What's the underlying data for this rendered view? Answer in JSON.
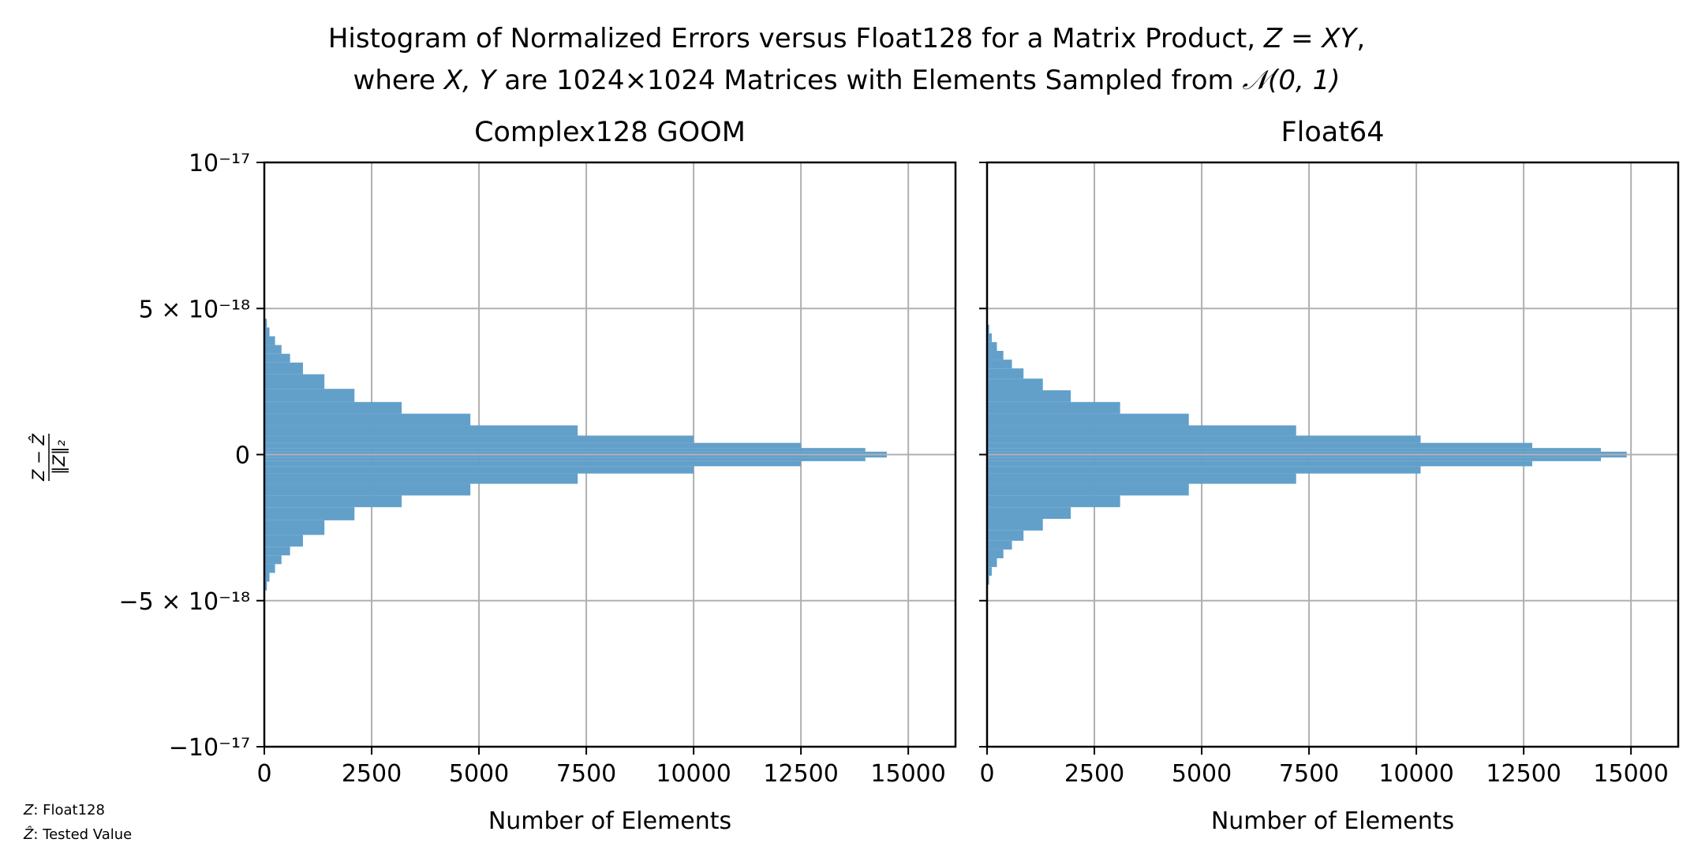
{
  "figure": {
    "title_line1_prefix": "Histogram of Normalized Errors versus Float128 for a Matrix Product, ",
    "title_line1_math": "Z = XY",
    "title_line1_suffix": ",",
    "title_line2_prefix": "where ",
    "title_line2_math": "X, Y",
    "title_line2_middle": " are 1024×1024 Matrices with Elements Sampled from ",
    "title_line2_dist": "𝒩(0, 1)",
    "legend_z_symbol": "Z",
    "legend_z_text": ": Float128",
    "legend_zhat_symbol": "Ẑ",
    "legend_zhat_text": ": Tested Value",
    "ylabel_numerator": "Z − Ẑ",
    "ylabel_denominator": "‖Z‖₂"
  },
  "colors": {
    "bar": "#62a0ca",
    "grid": "#b0b0b0",
    "axis": "#000000"
  },
  "chart_data": [
    {
      "type": "bar",
      "orientation": "horizontal-histogram",
      "title": "Complex128 GOOM",
      "xlabel": "Number of Elements",
      "ylabel": "(Z − Ẑ) / ‖Z‖₂",
      "xlim": [
        0,
        16100
      ],
      "ylim": [
        -1e-17,
        1e-17
      ],
      "xticks": [
        0,
        2500,
        5000,
        7500,
        10000,
        12500,
        15000
      ],
      "xtick_labels": [
        "0",
        "2500",
        "5000",
        "7500",
        "10000",
        "12500",
        "15000"
      ],
      "yticks": [
        1e-17,
        5e-18,
        0,
        -5e-18,
        -1e-17
      ],
      "ytick_labels": [
        "10⁻¹⁷",
        "5 × 10⁻¹⁸",
        "0",
        "−5 × 10⁻¹⁸",
        "−10⁻¹⁷"
      ],
      "grid": true,
      "bins_y_e18": [
        -4.5,
        -4.2,
        -3.9,
        -3.6,
        -3.3,
        -3.0,
        -2.5,
        -2.0,
        -1.6,
        -1.2,
        -0.8,
        -0.5,
        -0.3,
        -0.15,
        -0.05,
        0.0,
        0.05,
        0.15,
        0.3,
        0.5,
        0.8,
        1.2,
        1.6,
        2.0,
        2.5,
        3.0,
        3.3,
        3.6,
        3.9,
        4.2,
        4.5
      ],
      "counts": [
        60,
        120,
        250,
        400,
        600,
        900,
        1400,
        2100,
        3200,
        4800,
        7300,
        10000,
        12500,
        14000,
        14500,
        14600,
        14500,
        14000,
        12500,
        10000,
        7300,
        4800,
        3200,
        2100,
        1400,
        900,
        600,
        400,
        250,
        120,
        60
      ]
    },
    {
      "type": "bar",
      "orientation": "horizontal-histogram",
      "title": "Float64",
      "xlabel": "Number of Elements",
      "ylabel": "",
      "xlim": [
        0,
        16100
      ],
      "ylim": [
        -1e-17,
        1e-17
      ],
      "xticks": [
        0,
        2500,
        5000,
        7500,
        10000,
        12500,
        15000
      ],
      "xtick_labels": [
        "0",
        "2500",
        "5000",
        "7500",
        "10000",
        "12500",
        "15000"
      ],
      "yticks": [
        1e-17,
        5e-18,
        0,
        -5e-18,
        -1e-17
      ],
      "ytick_labels": [
        "",
        "",
        "",
        "",
        ""
      ],
      "grid": true,
      "bins_y_e18": [
        -4.3,
        -4.0,
        -3.7,
        -3.4,
        -3.1,
        -2.8,
        -2.4,
        -2.0,
        -1.6,
        -1.2,
        -0.8,
        -0.5,
        -0.3,
        -0.15,
        -0.05,
        0.0,
        0.05,
        0.15,
        0.3,
        0.5,
        0.8,
        1.2,
        1.6,
        2.0,
        2.4,
        2.8,
        3.1,
        3.4,
        3.7,
        4.0,
        4.3
      ],
      "counts": [
        50,
        110,
        230,
        380,
        580,
        850,
        1300,
        1950,
        3100,
        4700,
        7200,
        10100,
        12700,
        14300,
        14900,
        15000,
        14900,
        14300,
        12700,
        10100,
        7200,
        4700,
        3100,
        1950,
        1300,
        850,
        580,
        380,
        230,
        110,
        50
      ]
    }
  ]
}
